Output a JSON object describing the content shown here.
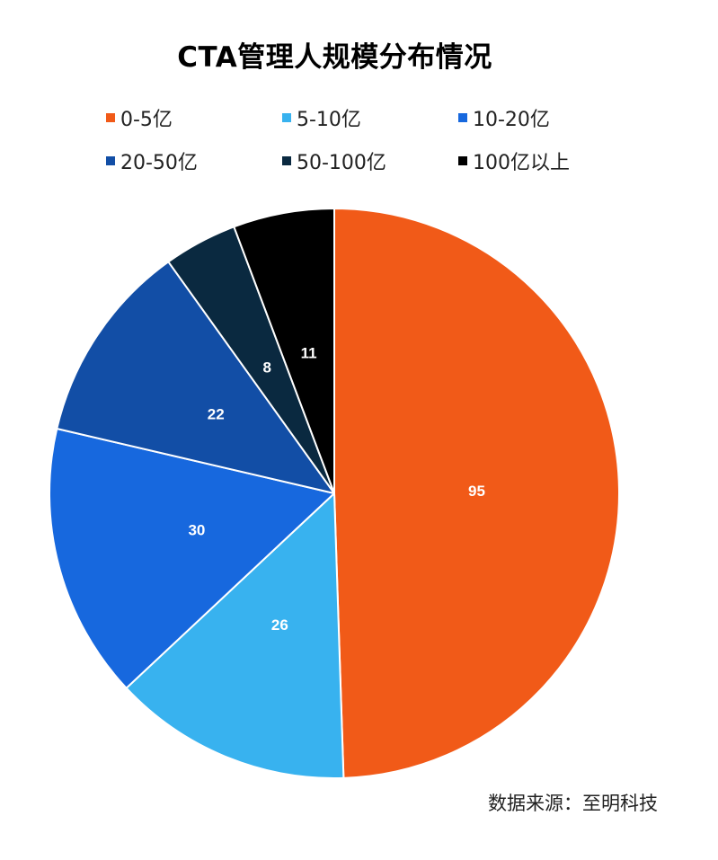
{
  "chart_data": {
    "type": "pie",
    "title": "CTA管理人规模分布情况",
    "categories": [
      "0-5亿",
      "5-10亿",
      "10-20亿",
      "20-50亿",
      "50-100亿",
      "100亿以上"
    ],
    "values": [
      95,
      26,
      30,
      22,
      8,
      11
    ],
    "colors": [
      "#f15a18",
      "#38b2ef",
      "#1768de",
      "#124ea6",
      "#0a2940",
      "#000000"
    ],
    "legend_position": "top",
    "start_angle": "12 o'clock, clockwise"
  },
  "source_text": "数据来源：至明科技"
}
